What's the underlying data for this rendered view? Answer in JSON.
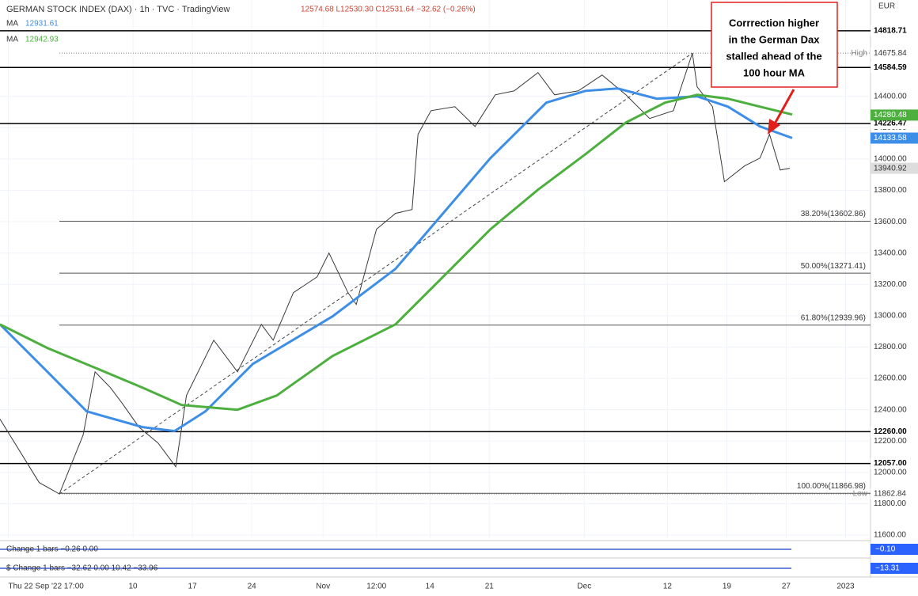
{
  "chart_data": {
    "type": "line",
    "title": "GERMAN STOCK INDEX (DAX) · 1h · TVC · TradingView",
    "ohlc_text": "12574.68  L12530.30  C12531.64  −32.62 (−0.26%)",
    "currency": "EUR",
    "annotation": [
      "Corrrection higher",
      "in the German Dax",
      "stalled ahead of the",
      "100 hour MA"
    ],
    "xlim": [
      0.8,
      74.1
    ],
    "ylim": [
      11580,
      15015
    ],
    "xticks": [
      {
        "value": 1.5,
        "label": "Thu 22 Sep '22  17:00"
      },
      {
        "value": 12,
        "label": "10"
      },
      {
        "value": 17,
        "label": "17"
      },
      {
        "value": 22,
        "label": "24"
      },
      {
        "value": 28,
        "label": "Nov"
      },
      {
        "value": 32.5,
        "label": "12:00"
      },
      {
        "value": 37,
        "label": "14"
      },
      {
        "value": 42,
        "label": "21"
      },
      {
        "value": 50,
        "label": "Dec"
      },
      {
        "value": 57,
        "label": "12"
      },
      {
        "value": 62,
        "label": "19"
      },
      {
        "value": 67,
        "label": "27"
      },
      {
        "value": 72,
        "label": "2023"
      }
    ],
    "yticks": [
      {
        "value": 11600,
        "label": "11600.00"
      },
      {
        "value": 11800,
        "label": "11800.00"
      },
      {
        "value": 12000,
        "label": "12000.00"
      },
      {
        "value": 12200,
        "label": "12200.00"
      },
      {
        "value": 12400,
        "label": "12400.00"
      },
      {
        "value": 12600,
        "label": "12600.00"
      },
      {
        "value": 12800,
        "label": "12800.00"
      },
      {
        "value": 13000,
        "label": "13000.00"
      },
      {
        "value": 13200,
        "label": "13200.00"
      },
      {
        "value": 13400,
        "label": "13400.00"
      },
      {
        "value": 13600,
        "label": "13600.00"
      },
      {
        "value": 13800,
        "label": "13800.00"
      },
      {
        "value": 14000,
        "label": "14000.00"
      },
      {
        "value": 14200,
        "label": "14200.00"
      },
      {
        "value": 14400,
        "label": "14400.00"
      }
    ],
    "series": [
      {
        "name": "DAX",
        "color": "#3a3a3a",
        "price_tag": 13940.92,
        "x": [
          0.8,
          4.1,
          5.8,
          7.8,
          8.8,
          10.1,
          11.1,
          12.5,
          14.1,
          15.6,
          16.5,
          18.8,
          20.8,
          22.8,
          23.8,
          25.5,
          27.5,
          28.5,
          30.1,
          30.8,
          32.5,
          34.1,
          35.5,
          36,
          37.1,
          39.1,
          40.8,
          42.5,
          44.1,
          46.1,
          47.5,
          49.5,
          51.5,
          53.5,
          55.5,
          57.5,
          59.1,
          59.5,
          60.8,
          61.8,
          63.5,
          64.8,
          65.6,
          66.5,
          67.3
        ],
        "values": [
          12340,
          11935,
          11863,
          12238,
          12642,
          12541,
          12440,
          12289,
          12188,
          12036,
          12491,
          12844,
          12642,
          12945,
          12844,
          13147,
          13248,
          13400,
          13147,
          13072,
          13552,
          13653,
          13678,
          14158,
          14309,
          14334,
          14208,
          14410,
          14435,
          14552,
          14410,
          14435,
          14536,
          14410,
          14259,
          14309,
          14676,
          14461,
          14334,
          13855,
          13956,
          14006,
          14158,
          13930,
          13941
        ]
      },
      {
        "name": "MA",
        "color": "#3d8ee6",
        "legend_value": 12931.61,
        "price_tag": 14133.58,
        "x": [
          0.8,
          4.8,
          8.1,
          12.8,
          15.5,
          18.1,
          22.1,
          28.8,
          34.1,
          38.1,
          42.1,
          46.8,
          50.1,
          52.8,
          56.1,
          59.5,
          62.1,
          64.8,
          67.5
        ],
        "values": [
          12945,
          12642,
          12390,
          12289,
          12264,
          12390,
          12693,
          12996,
          13299,
          13653,
          14006,
          14360,
          14435,
          14450,
          14385,
          14400,
          14334,
          14208,
          14134
        ]
      },
      {
        "name": "MA",
        "color": "#4caf3e",
        "legend_value": 12942.93,
        "price_tag": 14280.48,
        "x": [
          0.8,
          4.8,
          8.8,
          12.8,
          16.1,
          20.8,
          24.1,
          28.8,
          34.1,
          38.1,
          42.1,
          46.1,
          50.1,
          53.5,
          56.8,
          59.5,
          62.1,
          64.8,
          67.5
        ],
        "values": [
          12945,
          12794,
          12668,
          12541,
          12430,
          12400,
          12491,
          12743,
          12945,
          13248,
          13552,
          13804,
          14031,
          14233,
          14360,
          14410,
          14385,
          14334,
          14284
        ]
      }
    ],
    "levels": [
      {
        "value": 14818.71,
        "label": "14818.71"
      },
      {
        "value": 14584.59,
        "label": "14584.59"
      },
      {
        "value": 14226.47,
        "label": "14226.47"
      },
      {
        "value": 12260.0,
        "label": "12260.00"
      },
      {
        "value": 12057.0,
        "label": "12057.00"
      }
    ],
    "fib_levels": [
      {
        "value": 13602.86,
        "label": "38.20%(13602.86)"
      },
      {
        "value": 13271.41,
        "label": "50.00%(13271.41)"
      },
      {
        "value": 12939.96,
        "label": "61.80%(12939.96)"
      },
      {
        "value": 11866.98,
        "label": "100.00%(11866.98)"
      }
    ],
    "high": {
      "text": "High",
      "value": 14675.84,
      "label": "14675.84"
    },
    "low": {
      "text": "Low",
      "value": 11862.84,
      "label": "11862.84"
    },
    "trendline": {
      "x": [
        5.8,
        59.1
      ],
      "values": [
        11862.84,
        14675.84
      ]
    },
    "indicators": [
      {
        "label": "Change  1 bars   −0.26  0.00",
        "value_label": "−0.10"
      },
      {
        "label": "$ Change  1 bars   −32.62  0.00  10.42  −33.96",
        "value_label": "−13.31"
      }
    ]
  }
}
